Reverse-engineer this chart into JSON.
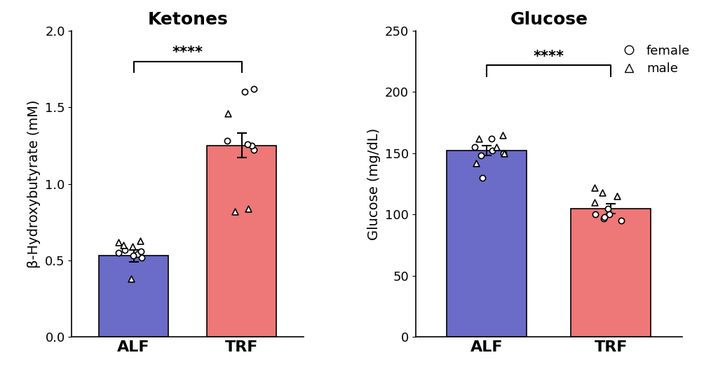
{
  "ketones_title": "Ketones",
  "glucose_title": "Glucose",
  "ketones_ylabel": "β-Hydroxybutyrate (mM)",
  "glucose_ylabel": "Glucose (mg/dL)",
  "categories": [
    "ALF",
    "TRF"
  ],
  "bar_color_blue": "#6B6BC8",
  "bar_color_red": "#EE7777",
  "ketones_means": [
    0.53,
    1.25
  ],
  "ketones_sems": [
    0.04,
    0.08
  ],
  "glucose_means": [
    152,
    105
  ],
  "glucose_sems": [
    4,
    4
  ],
  "ketones_ylim": [
    0,
    2.0
  ],
  "ketones_yticks": [
    0.0,
    0.5,
    1.0,
    1.5,
    2.0
  ],
  "glucose_ylim": [
    0,
    250
  ],
  "glucose_yticks": [
    0,
    50,
    100,
    150,
    200,
    250
  ],
  "significance": "****",
  "ketones_alf_circles": [
    0.52,
    0.55,
    0.54,
    0.56,
    0.53,
    0.57
  ],
  "ketones_alf_triangles": [
    0.6,
    0.62,
    0.59,
    0.63,
    0.38
  ],
  "ketones_trf_circles": [
    1.6,
    1.62,
    1.22,
    1.25,
    1.28,
    1.26
  ],
  "ketones_trf_triangles": [
    1.46,
    0.82,
    0.84
  ],
  "glucose_alf_circles": [
    162,
    130,
    152,
    155,
    150,
    148
  ],
  "glucose_alf_triangles": [
    162,
    165,
    155,
    150,
    142
  ],
  "glucose_trf_circles": [
    105,
    100,
    95,
    97,
    100,
    98
  ],
  "glucose_trf_triangles": [
    118,
    122,
    115,
    110
  ],
  "legend_female_label": "female",
  "legend_male_label": "male",
  "title_fontsize": 18,
  "label_fontsize": 14,
  "tick_fontsize": 13,
  "xticklabel_fontsize": 16,
  "bar_width": 0.45,
  "bar_positions": [
    0.3,
    1.0
  ]
}
